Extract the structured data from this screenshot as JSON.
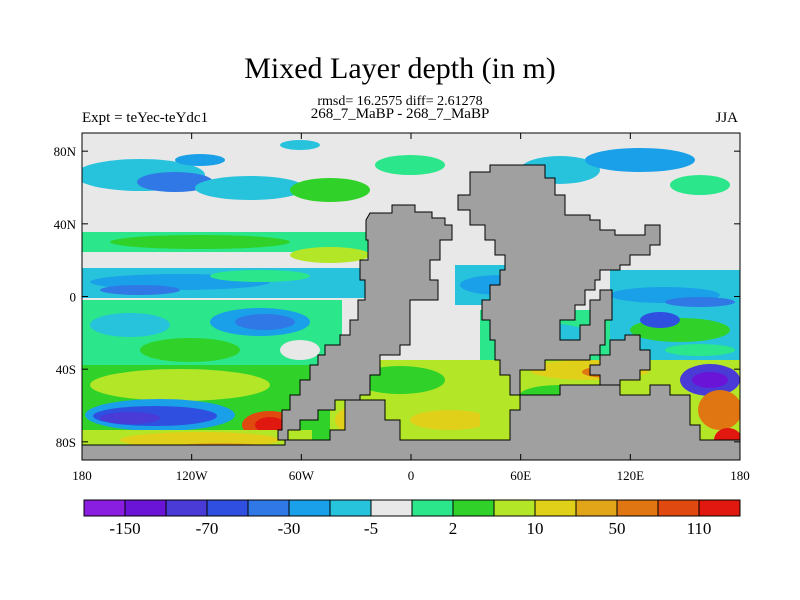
{
  "header": {
    "title": "Mixed Layer depth (in m)",
    "stats": "rmsd= 16.2575 diff= 2.61278",
    "subtitle": "268_7_MaBP - 268_7_MaBP",
    "experiment": "Expt = teYec-teYdc1",
    "season": "JJA"
  },
  "axes": {
    "y_ticks": [
      {
        "value": 80,
        "label": "80N"
      },
      {
        "value": 40,
        "label": "40N"
      },
      {
        "value": 0,
        "label": "0"
      },
      {
        "value": -40,
        "label": "40S"
      },
      {
        "value": -80,
        "label": "80S"
      }
    ],
    "x_ticks": [
      {
        "value": -180,
        "label": "180"
      },
      {
        "value": -120,
        "label": "120W"
      },
      {
        "value": -60,
        "label": "60W"
      },
      {
        "value": 0,
        "label": "0"
      },
      {
        "value": 60,
        "label": "60E"
      },
      {
        "value": 120,
        "label": "120E"
      },
      {
        "value": 180,
        "label": "180"
      }
    ],
    "lon_range": [
      -180,
      180
    ],
    "lat_range": [
      -90,
      90
    ]
  },
  "colorbar": {
    "colors": [
      "#8a1ee0",
      "#6a14d8",
      "#4a3ad6",
      "#2f4fe0",
      "#2f78e6",
      "#1aa0e8",
      "#27c3dc",
      "#e8e8e8",
      "#2be68a",
      "#30d22a",
      "#b4e628",
      "#e0d01a",
      "#e2a51a",
      "#e07612",
      "#e04a10",
      "#e01810"
    ],
    "labels": [
      "-150",
      "-70",
      "-30",
      "-5",
      "2",
      "10",
      "50",
      "110"
    ]
  },
  "map": {
    "land_color": "#a0a0a0",
    "ocean_background": "#e8e8e8"
  }
}
